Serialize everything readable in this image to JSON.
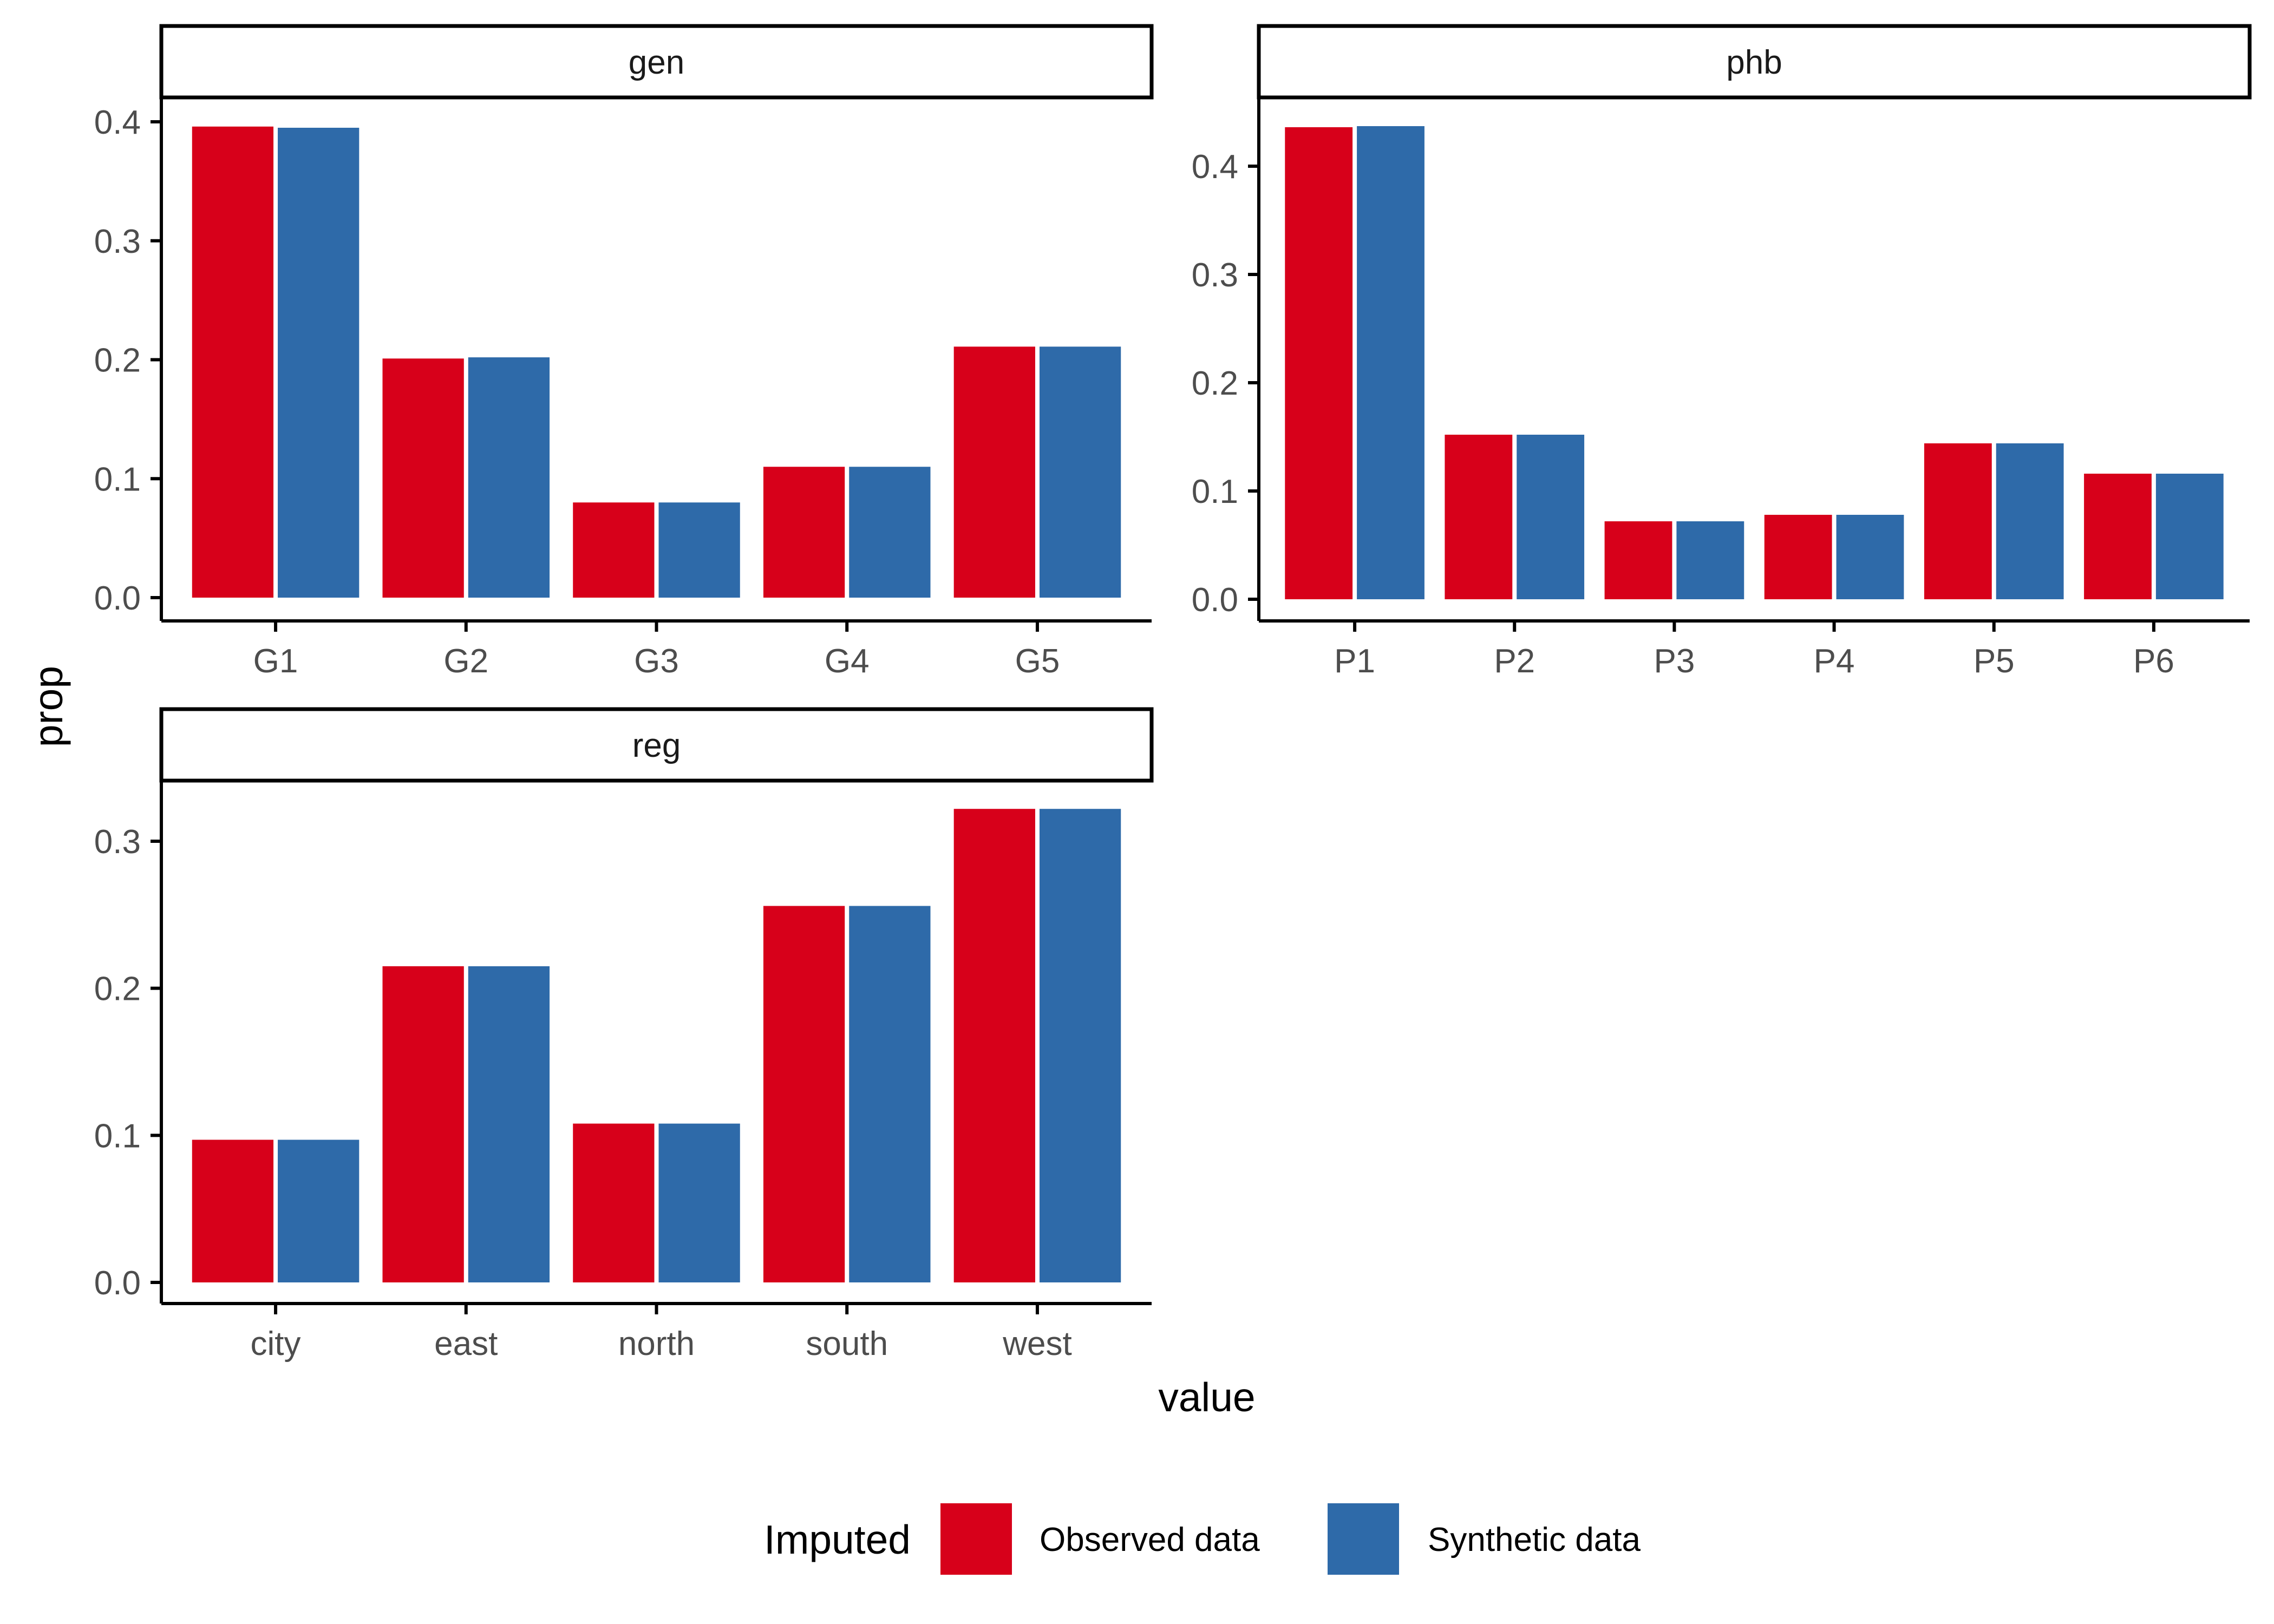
{
  "chart_data": {
    "type": "bar",
    "ylabel": "prop",
    "xlabel": "value",
    "legend": {
      "title": "Imputed",
      "position": "bottom",
      "entries": [
        {
          "name": "Observed data",
          "color": "#d7001a"
        },
        {
          "name": "Synthetic data",
          "color": "#2e6aa9"
        }
      ]
    },
    "grid": false,
    "panels": [
      {
        "strip": "gen",
        "categories": [
          "G1",
          "G2",
          "G3",
          "G4",
          "G5"
        ],
        "series": [
          {
            "name": "Observed data",
            "values": [
              0.396,
              0.201,
              0.08,
              0.11,
              0.211
            ]
          },
          {
            "name": "Synthetic data",
            "values": [
              0.395,
              0.202,
              0.08,
              0.11,
              0.211
            ]
          }
        ],
        "ylim": [
          0,
          0.4
        ],
        "yticks": [
          "0.0",
          "0.1",
          "0.2",
          "0.3",
          "0.4"
        ]
      },
      {
        "strip": "phb",
        "categories": [
          "P1",
          "P2",
          "P3",
          "P4",
          "P5",
          "P6"
        ],
        "series": [
          {
            "name": "Observed data",
            "values": [
              0.436,
              0.152,
              0.072,
              0.078,
              0.144,
              0.116
            ]
          },
          {
            "name": "Synthetic data",
            "values": [
              0.437,
              0.152,
              0.072,
              0.078,
              0.144,
              0.116
            ]
          }
        ],
        "ylim": [
          0,
          0.4
        ],
        "yticks": [
          "0.0",
          "0.1",
          "0.2",
          "0.3",
          "0.4"
        ]
      },
      {
        "strip": "reg",
        "categories": [
          "city",
          "east",
          "north",
          "south",
          "west"
        ],
        "series": [
          {
            "name": "Observed data",
            "values": [
              0.097,
              0.215,
              0.108,
              0.256,
              0.322
            ]
          },
          {
            "name": "Synthetic data",
            "values": [
              0.097,
              0.215,
              0.108,
              0.256,
              0.322
            ]
          }
        ],
        "ylim": [
          0,
          0.3
        ],
        "yticks": [
          "0.0",
          "0.1",
          "0.2",
          "0.3"
        ]
      }
    ]
  }
}
